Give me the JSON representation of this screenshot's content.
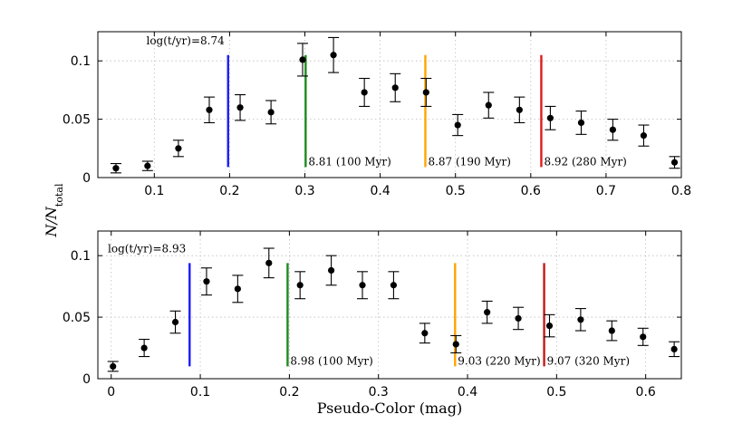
{
  "chart_data": [
    {
      "type": "scatter",
      "title": "",
      "xlabel": "",
      "ylabel": "N/N_total",
      "xlim": [
        0.025,
        0.8
      ],
      "ylim": [
        0,
        0.125
      ],
      "xticks": [
        0.1,
        0.2,
        0.3,
        0.4,
        0.5,
        0.6,
        0.7,
        0.8
      ],
      "xtick_labels": [
        "0.1",
        "0.2",
        "0.3",
        "0.4",
        "0.5",
        "0.6",
        "0.7",
        "0.8"
      ],
      "yticks": [
        0,
        0.05,
        0.1
      ],
      "ytick_labels": [
        "0",
        "0.05",
        "0.1"
      ],
      "grid": true,
      "points": [
        {
          "x": 0.049,
          "y": 0.008,
          "err": 0.004
        },
        {
          "x": 0.091,
          "y": 0.01,
          "err": 0.004
        },
        {
          "x": 0.132,
          "y": 0.025,
          "err": 0.007
        },
        {
          "x": 0.173,
          "y": 0.058,
          "err": 0.011
        },
        {
          "x": 0.214,
          "y": 0.06,
          "err": 0.011
        },
        {
          "x": 0.255,
          "y": 0.056,
          "err": 0.01
        },
        {
          "x": 0.297,
          "y": 0.101,
          "err": 0.014
        },
        {
          "x": 0.338,
          "y": 0.105,
          "err": 0.015
        },
        {
          "x": 0.379,
          "y": 0.073,
          "err": 0.012
        },
        {
          "x": 0.42,
          "y": 0.077,
          "err": 0.012
        },
        {
          "x": 0.461,
          "y": 0.073,
          "err": 0.012
        },
        {
          "x": 0.503,
          "y": 0.045,
          "err": 0.009
        },
        {
          "x": 0.544,
          "y": 0.062,
          "err": 0.011
        },
        {
          "x": 0.585,
          "y": 0.058,
          "err": 0.011
        },
        {
          "x": 0.626,
          "y": 0.051,
          "err": 0.01
        },
        {
          "x": 0.667,
          "y": 0.047,
          "err": 0.01
        },
        {
          "x": 0.709,
          "y": 0.041,
          "err": 0.009
        },
        {
          "x": 0.75,
          "y": 0.036,
          "err": 0.009
        },
        {
          "x": 0.791,
          "y": 0.013,
          "err": 0.005
        }
      ],
      "vlines": [
        {
          "x": 0.198,
          "ymin": 0.009,
          "ymax": 0.105,
          "color": "#1a1aff",
          "label": "log(t/yr)=8.74",
          "label_pos": "top-left"
        },
        {
          "x": 0.301,
          "ymin": 0.009,
          "ymax": 0.105,
          "color": "#1e8a1e",
          "label": "8.81 (100 Myr)",
          "label_pos": "bottom-right"
        },
        {
          "x": 0.46,
          "ymin": 0.009,
          "ymax": 0.105,
          "color": "#ffa500",
          "label": "8.87 (190 Myr)",
          "label_pos": "bottom-right"
        },
        {
          "x": 0.614,
          "ymin": 0.009,
          "ymax": 0.105,
          "color": "#e21a1a",
          "label": "8.92 (280 Myr)",
          "label_pos": "bottom-right"
        }
      ]
    },
    {
      "type": "scatter",
      "title": "",
      "xlabel": "Pseudo-Color (mag)",
      "ylabel": "",
      "xlim": [
        -0.015,
        0.64
      ],
      "ylim": [
        0,
        0.12
      ],
      "xticks": [
        0,
        0.1,
        0.2,
        0.3,
        0.4,
        0.5,
        0.6
      ],
      "xtick_labels": [
        "0",
        "0.1",
        "0.2",
        "0.3",
        "0.4",
        "0.5",
        "0.6"
      ],
      "yticks": [
        0,
        0.05,
        0.1
      ],
      "ytick_labels": [
        "0",
        "0.05",
        "0.1"
      ],
      "grid": true,
      "points": [
        {
          "x": 0.002,
          "y": 0.01,
          "err": 0.004
        },
        {
          "x": 0.037,
          "y": 0.025,
          "err": 0.007
        },
        {
          "x": 0.072,
          "y": 0.046,
          "err": 0.009
        },
        {
          "x": 0.107,
          "y": 0.079,
          "err": 0.011
        },
        {
          "x": 0.142,
          "y": 0.073,
          "err": 0.011
        },
        {
          "x": 0.177,
          "y": 0.094,
          "err": 0.012
        },
        {
          "x": 0.212,
          "y": 0.076,
          "err": 0.011
        },
        {
          "x": 0.247,
          "y": 0.088,
          "err": 0.012
        },
        {
          "x": 0.282,
          "y": 0.076,
          "err": 0.011
        },
        {
          "x": 0.317,
          "y": 0.076,
          "err": 0.011
        },
        {
          "x": 0.352,
          "y": 0.037,
          "err": 0.008
        },
        {
          "x": 0.387,
          "y": 0.028,
          "err": 0.007
        },
        {
          "x": 0.422,
          "y": 0.054,
          "err": 0.009
        },
        {
          "x": 0.457,
          "y": 0.049,
          "err": 0.009
        },
        {
          "x": 0.492,
          "y": 0.043,
          "err": 0.009
        },
        {
          "x": 0.527,
          "y": 0.048,
          "err": 0.009
        },
        {
          "x": 0.562,
          "y": 0.039,
          "err": 0.008
        },
        {
          "x": 0.597,
          "y": 0.034,
          "err": 0.007
        },
        {
          "x": 0.632,
          "y": 0.024,
          "err": 0.006
        }
      ],
      "vlines": [
        {
          "x": 0.088,
          "ymin": 0.01,
          "ymax": 0.094,
          "color": "#1a1aff",
          "label": "log(t/yr)=8.93",
          "label_pos": "top-left"
        },
        {
          "x": 0.198,
          "ymin": 0.01,
          "ymax": 0.094,
          "color": "#1e8a1e",
          "label": "8.98 (100 Myr)",
          "label_pos": "bottom-right"
        },
        {
          "x": 0.386,
          "ymin": 0.01,
          "ymax": 0.094,
          "color": "#ffa500",
          "label": "9.03 (220 Myr)",
          "label_pos": "bottom-right"
        },
        {
          "x": 0.486,
          "ymin": 0.01,
          "ymax": 0.094,
          "color": "#c41a1a",
          "label": "9.07 (320 Myr)",
          "label_pos": "bottom-right"
        }
      ]
    }
  ]
}
